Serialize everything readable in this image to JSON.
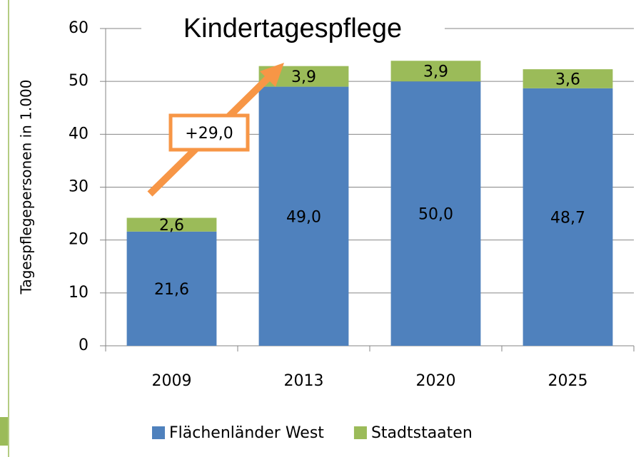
{
  "chart_data": {
    "type": "stacked_bar",
    "title": "Kindertagespflege",
    "y_label": "Tagespflegepersonen in 1.000",
    "categories": [
      "2009",
      "2013",
      "2020",
      "2025"
    ],
    "series": [
      {
        "name": "Flächenländer West",
        "color": "#4f81bd",
        "values": [
          21.6,
          49.0,
          50.0,
          48.7
        ],
        "value_labels": [
          "21,6",
          "49,0",
          "50,0",
          "48,7"
        ]
      },
      {
        "name": "Stadtstaaten",
        "color": "#9bbb59",
        "values": [
          2.6,
          3.9,
          3.9,
          3.6
        ],
        "value_labels": [
          "2,6",
          "3,9",
          "3,9",
          "3,6"
        ]
      }
    ],
    "annotation": "+29,0",
    "annotation_color": "#f79646",
    "ylim": [
      0,
      60
    ],
    "yticks": [
      0,
      10,
      20,
      30,
      40,
      50,
      60
    ],
    "grid": true,
    "legend": "bottom"
  }
}
